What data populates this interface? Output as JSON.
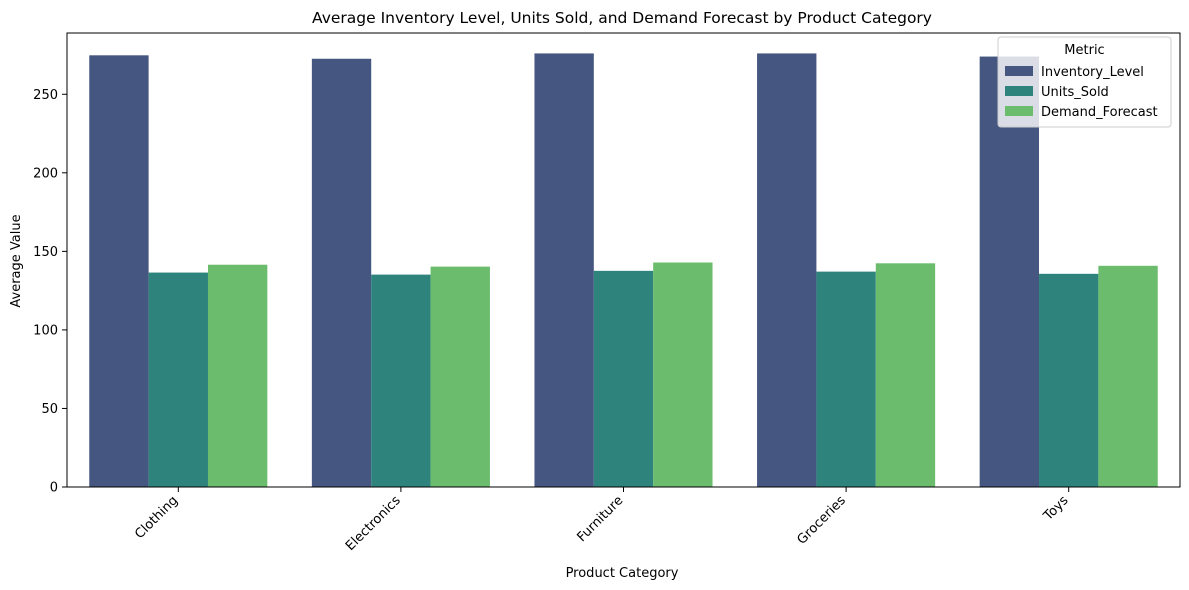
{
  "chart_data": {
    "type": "bar",
    "title": "Average Inventory Level, Units Sold, and Demand Forecast by Product Category",
    "xlabel": "Product Category",
    "ylabel": "Average Value",
    "categories": [
      "Clothing",
      "Electronics",
      "Furniture",
      "Groceries",
      "Toys"
    ],
    "series": [
      {
        "name": "Inventory_Level",
        "color": "#455681",
        "values": [
          274.8,
          272.6,
          276.0,
          276.0,
          274.0
        ]
      },
      {
        "name": "Units_Sold",
        "color": "#2e837d",
        "values": [
          136.5,
          135.2,
          137.6,
          137.1,
          135.7
        ]
      },
      {
        "name": "Demand_Forecast",
        "color": "#6bbd6d",
        "values": [
          141.5,
          140.3,
          142.9,
          142.4,
          140.8
        ]
      }
    ],
    "ylim": [
      0,
      289
    ],
    "yticks": [
      0,
      50,
      100,
      150,
      200,
      250
    ],
    "grid": false,
    "legend": {
      "title": "Metric",
      "position": "top-right"
    }
  }
}
